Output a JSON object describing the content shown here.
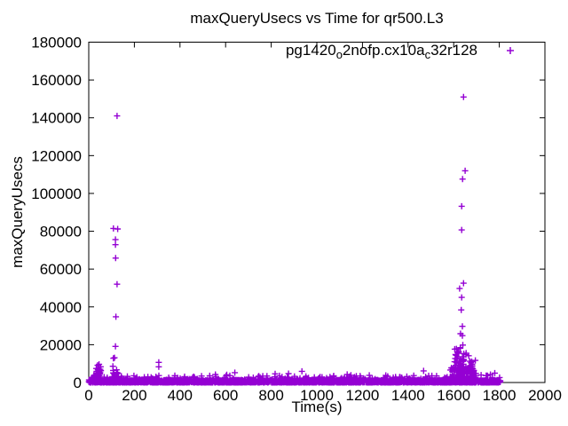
{
  "window": {
    "background": "#ffffff"
  },
  "chart_data": {
    "type": "scatter",
    "title": "maxQueryUsecs vs Time for qr500.L3",
    "xlabel": "Time(s)",
    "ylabel": "maxQueryUsecs",
    "xlim": [
      0,
      2000
    ],
    "ylim": [
      0,
      180000
    ],
    "xticks": [
      0,
      200,
      400,
      600,
      800,
      1000,
      1200,
      1400,
      1600,
      1800,
      2000
    ],
    "yticks": [
      0,
      20000,
      40000,
      60000,
      80000,
      100000,
      120000,
      140000,
      160000,
      180000
    ],
    "grid": false,
    "legend_position": "top-right-inside",
    "colors": {
      "marker": "#9400D3",
      "axis": "#000000",
      "text": "#000000",
      "background": "#ffffff"
    },
    "series": [
      {
        "name": "pg1420_o2nofp.cx10a_c32r128",
        "label_parts": [
          {
            "text": "pg1420",
            "sub": false
          },
          {
            "text": "o",
            "sub": true
          },
          {
            "text": "2nofp.cx10a",
            "sub": false
          },
          {
            "text": "c",
            "sub": true
          },
          {
            "text": "32r128",
            "sub": false
          }
        ],
        "marker": "plus",
        "color": "#9400D3",
        "outlier_points": [
          [
            124,
            141000
          ],
          [
            108,
            81500
          ],
          [
            127,
            81200
          ],
          [
            117,
            75600
          ],
          [
            117,
            72900
          ],
          [
            118,
            65800
          ],
          [
            124,
            52000
          ],
          [
            119,
            34800
          ],
          [
            117,
            19100
          ],
          [
            113,
            13100
          ],
          [
            108,
            12800
          ],
          [
            106,
            8600
          ],
          [
            122,
            6700
          ],
          [
            307,
            10650
          ],
          [
            307,
            8300
          ],
          [
            39,
            9100
          ],
          [
            45,
            9600
          ],
          [
            52,
            8300
          ],
          [
            33,
            7400
          ],
          [
            1643,
            151000
          ],
          [
            1650,
            112000
          ],
          [
            1639,
            107600
          ],
          [
            1635,
            93200
          ],
          [
            1635,
            80700
          ],
          [
            1643,
            52500
          ],
          [
            1626,
            49700
          ],
          [
            1635,
            45000
          ],
          [
            1633,
            38400
          ],
          [
            1638,
            29700
          ],
          [
            1630,
            25800
          ],
          [
            1638,
            24800
          ],
          [
            1640,
            19800
          ],
          [
            1612,
            17800
          ],
          [
            1622,
            16300
          ],
          [
            1608,
            14800
          ],
          [
            1617,
            13500
          ],
          [
            1671,
            11200
          ],
          [
            1676,
            10400
          ],
          [
            1681,
            9600
          ],
          [
            1669,
            8400
          ],
          [
            1684,
            7200
          ],
          [
            1660,
            6100
          ]
        ],
        "dense_clusters": [
          {
            "shape": "uniform",
            "t": [
              0,
              1805
            ],
            "v": [
              0,
              1400
            ],
            "n": 2600,
            "skew": 1.6
          },
          {
            "shape": "uniform",
            "t": [
              0,
              1805
            ],
            "v": [
              800,
              3800
            ],
            "n": 300,
            "skew": 2.2
          },
          {
            "shape": "uniform",
            "t": [
              30,
              1790
            ],
            "v": [
              3500,
              6200
            ],
            "n": 22,
            "skew": 1.5
          },
          {
            "shape": "ramp",
            "t": [
              6,
              58
            ],
            "v": [
              800,
              10500
            ],
            "n": 55
          },
          {
            "shape": "uniform",
            "t": [
              1585,
              1700
            ],
            "v": [
              500,
              13500
            ],
            "n": 150,
            "skew": 2.6
          },
          {
            "shape": "uniform",
            "t": [
              1603,
              1668
            ],
            "v": [
              2000,
              19500
            ],
            "n": 45,
            "skew": 1.8
          },
          {
            "shape": "uniform",
            "t": [
              100,
              135
            ],
            "v": [
              800,
              6500
            ],
            "n": 18,
            "skew": 1.7
          }
        ],
        "random_seed": 1337
      }
    ]
  }
}
